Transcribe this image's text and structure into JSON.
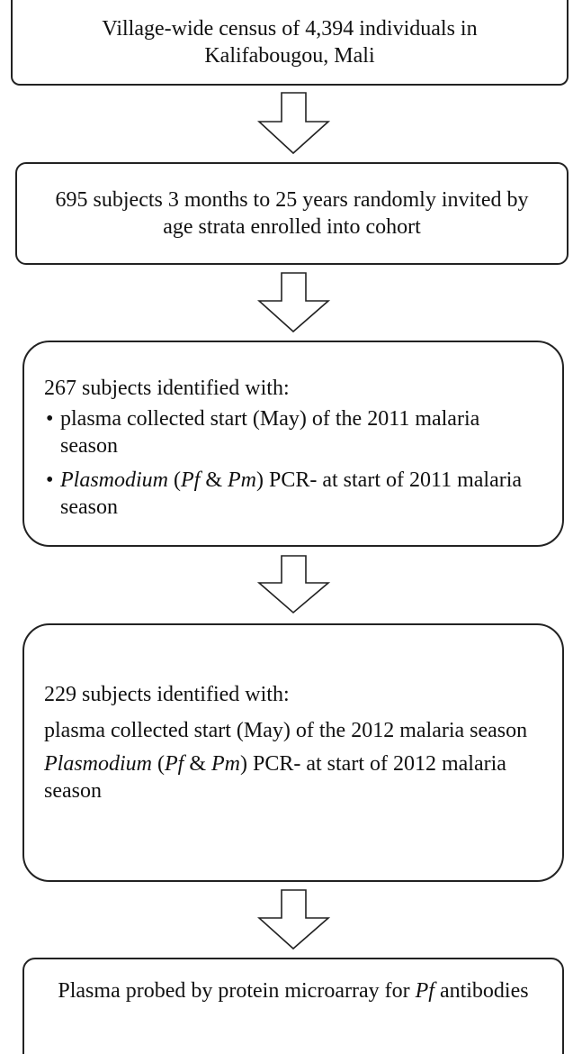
{
  "nodes": [
    {
      "text": "Village-wide census of 4,394 individuals in Kalifabougou, Mali"
    },
    {
      "text": "695 subjects 3 months to 25 years randomly invited by age strata enrolled into cohort"
    },
    {
      "heading": "267 subjects identified with:",
      "items": [
        [
          "plasma collected start (May) of the 2011 malaria  season"
        ],
        [
          "Plasmodium",
          " (",
          "Pf",
          " & ",
          "Pm",
          ") PCR- at start of 2011 malaria season"
        ]
      ]
    },
    {
      "heading": "229 subjects identified with:",
      "items": [
        [
          "plasma collected start (May) of the 2012 malaria  season"
        ],
        [
          "Plasmodium",
          " (",
          "Pf",
          " & ",
          "Pm",
          ") PCR- at start of 2012 malaria season"
        ]
      ]
    },
    {
      "text": [
        "Plasma probed by protein microarray for ",
        "Pf",
        " antibodies"
      ]
    }
  ]
}
